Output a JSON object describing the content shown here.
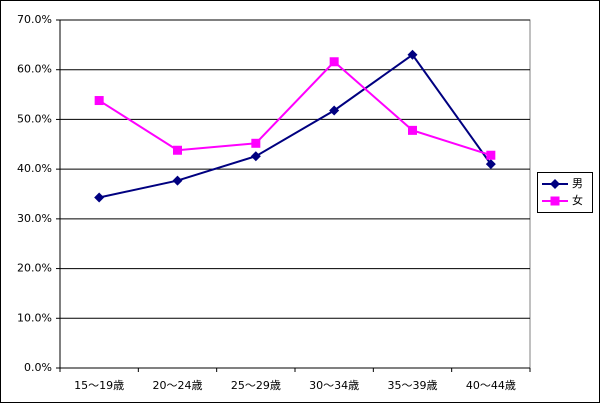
{
  "chart_data": {
    "type": "line",
    "categories": [
      "15〜19歳",
      "20〜24歳",
      "25〜29歳",
      "30〜34歳",
      "35〜39歳",
      "40〜44歳"
    ],
    "series": [
      {
        "name": "男",
        "color": "#000080",
        "marker": "diamond",
        "values": [
          34.3,
          37.7,
          42.6,
          51.8,
          63.0,
          41.0
        ]
      },
      {
        "name": "女",
        "color": "#ff00ff",
        "marker": "square",
        "values": [
          53.8,
          43.8,
          45.2,
          61.6,
          47.8,
          42.8
        ]
      }
    ],
    "ylim": [
      0,
      70
    ],
    "yticks": [
      {
        "value": 0,
        "label": "0.0%"
      },
      {
        "value": 10,
        "label": "10.0%"
      },
      {
        "value": 20,
        "label": "20.0%"
      },
      {
        "value": 30,
        "label": "30.0%"
      },
      {
        "value": 40,
        "label": "40.0%"
      },
      {
        "value": 50,
        "label": "50.0%"
      },
      {
        "value": 60,
        "label": "60.0%"
      },
      {
        "value": 70,
        "label": "70.0%"
      }
    ],
    "grid": true,
    "legend": "right"
  }
}
